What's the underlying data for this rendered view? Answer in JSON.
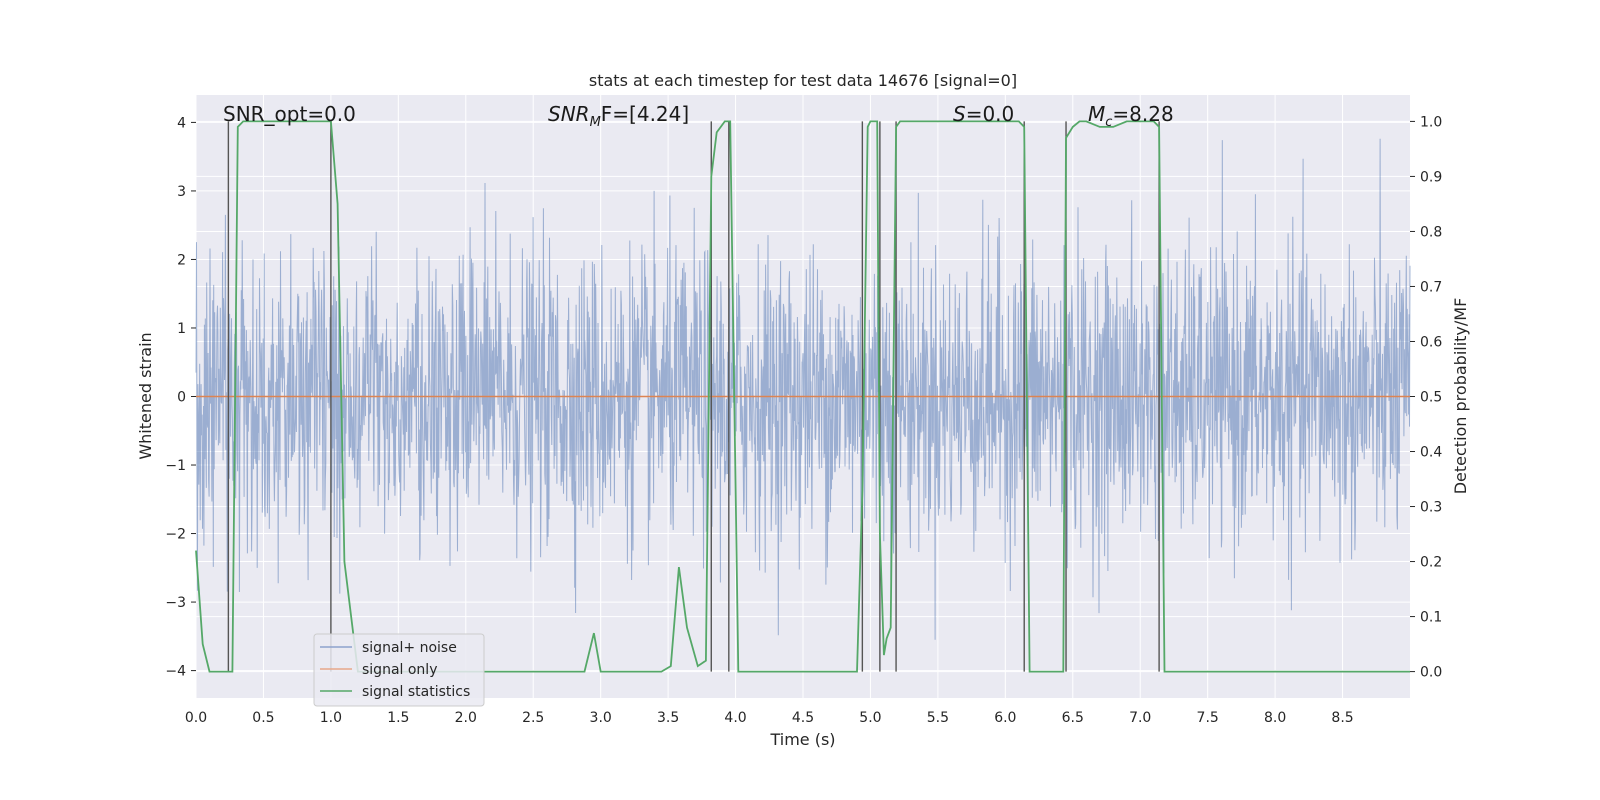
{
  "chart_data": {
    "type": "line",
    "title": "stats at each timestep for test data 14676 [signal=0]",
    "xlabel": "Time (s)",
    "ylabel_left": "Whitened strain",
    "ylabel_right": "Detection probability/MF",
    "xlim": [
      0,
      9
    ],
    "ylim_left": [
      -4.4,
      4.4
    ],
    "ylim_right": [
      -0.048,
      1.048
    ],
    "x_ticks": [
      0.0,
      0.5,
      1.0,
      1.5,
      2.0,
      2.5,
      3.0,
      3.5,
      4.0,
      4.5,
      5.0,
      5.5,
      6.0,
      6.5,
      7.0,
      7.5,
      8.0,
      8.5
    ],
    "x_tick_labels": [
      "0.0",
      "0.5",
      "1.0",
      "1.5",
      "2.0",
      "2.5",
      "3.0",
      "3.5",
      "4.0",
      "4.5",
      "5.0",
      "5.5",
      "6.0",
      "6.5",
      "7.0",
      "7.5",
      "8.0",
      "8.5"
    ],
    "y_left_ticks": [
      4,
      3,
      2,
      1,
      0,
      -1,
      -2,
      -3,
      -4
    ],
    "y_left_tick_labels": [
      "4",
      "3",
      "2",
      "1",
      "0",
      "−1",
      "−2",
      "−3",
      "−4"
    ],
    "y_right_ticks": [
      1.0,
      0.9,
      0.8,
      0.7,
      0.6,
      0.5,
      0.4,
      0.3,
      0.2,
      0.1,
      0.0
    ],
    "y_right_tick_labels": [
      "1.0",
      "0.9",
      "0.8",
      "0.7",
      "0.6",
      "0.5",
      "0.4",
      "0.3",
      "0.2",
      "0.1",
      "0.0"
    ],
    "grid": true,
    "series": [
      {
        "name": "signal+ noise",
        "axis": "left",
        "color": "#4c72b0",
        "style": "dense noise trace, standard deviation about 1, peaks up to about ±3.8",
        "typical_envelope": [
          -2.5,
          2.8
        ]
      },
      {
        "name": "signal only",
        "axis": "left",
        "color": "#dd8452",
        "x": [
          0,
          9
        ],
        "values": [
          0,
          0
        ]
      },
      {
        "name": "signal statistics",
        "axis": "right",
        "color": "#55a868",
        "x": [
          0.0,
          0.05,
          0.1,
          0.24,
          0.27,
          0.31,
          0.35,
          0.5,
          0.75,
          1.0,
          1.05,
          1.1,
          1.2,
          1.5,
          2.0,
          2.5,
          2.88,
          2.95,
          3.0,
          3.2,
          3.45,
          3.52,
          3.58,
          3.64,
          3.72,
          3.78,
          3.82,
          3.86,
          3.92,
          3.96,
          4.02,
          4.07,
          4.5,
          4.9,
          4.94,
          4.98,
          5.0,
          5.05,
          5.07,
          5.1,
          5.12,
          5.15,
          5.19,
          5.22,
          5.25,
          5.35,
          5.6,
          5.8,
          6.0,
          6.1,
          6.14,
          6.18,
          6.2,
          6.3,
          6.43,
          6.45,
          6.5,
          6.55,
          6.6,
          6.7,
          6.8,
          6.9,
          7.0,
          7.1,
          7.14,
          7.18,
          7.25,
          7.5,
          8.0,
          8.5,
          9.0
        ],
        "values": [
          0.22,
          0.05,
          0.0,
          0.0,
          0.0,
          0.99,
          1.0,
          1.0,
          1.0,
          1.0,
          0.85,
          0.2,
          0.0,
          0.0,
          0.0,
          0.0,
          0.0,
          0.07,
          0.0,
          0.0,
          0.0,
          0.01,
          0.19,
          0.08,
          0.01,
          0.02,
          0.9,
          0.98,
          1.0,
          1.0,
          0.0,
          0.0,
          0.0,
          0.0,
          0.33,
          0.99,
          1.0,
          1.0,
          0.25,
          0.03,
          0.06,
          0.08,
          0.99,
          1.0,
          1.0,
          1.0,
          1.0,
          1.0,
          1.0,
          1.0,
          0.99,
          0.0,
          0.0,
          0.0,
          0.0,
          0.97,
          0.99,
          1.0,
          1.0,
          0.99,
          0.99,
          1.0,
          1.0,
          1.0,
          0.99,
          0.0,
          0.0,
          0.0,
          0.0,
          0.0,
          0.0
        ]
      }
    ],
    "marker_lines_x": [
      0.24,
      1.0,
      3.82,
      3.95,
      4.94,
      5.07,
      5.19,
      6.14,
      6.45,
      7.14
    ],
    "marker_lines_color": "#555555",
    "annotations": [
      {
        "text": "SNR_opt=0.0"
      },
      {
        "base": "SNR",
        "sub": "M",
        "rest": "F=[4.24]"
      },
      {
        "base": "S",
        "rest": "=0.0"
      },
      {
        "base": "M",
        "sub": "c",
        "rest": "=8.28"
      }
    ],
    "legend": {
      "placement": "lower-left",
      "entries": [
        {
          "label": "signal+ noise",
          "color": "#8da2cc"
        },
        {
          "label": "signal only",
          "color": "#e8a88a"
        },
        {
          "label": "signal statistics",
          "color": "#55a868"
        }
      ]
    },
    "colors": {
      "plot_background": "#eaeaf2",
      "grid": "#ffffff",
      "tick_text": "#262626"
    }
  }
}
